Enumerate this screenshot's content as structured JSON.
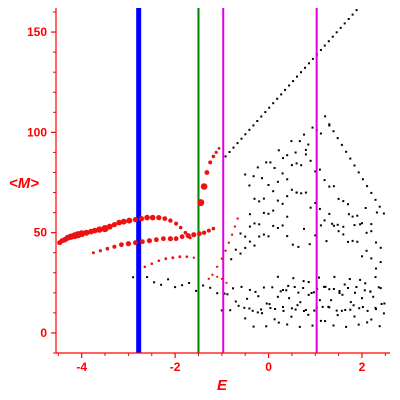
{
  "chart_data": {
    "type": "scatter",
    "xlabel": "E",
    "ylabel": "<M>",
    "xlim": [
      -4.55,
      2.6
    ],
    "ylim": [
      -10,
      162
    ],
    "x_ticks": [
      -4,
      -2,
      0,
      2
    ],
    "x_tick_labels": [
      "-4",
      "-2",
      "0",
      "2"
    ],
    "y_ticks": [
      0,
      50,
      100,
      150
    ],
    "y_tick_labels": [
      "0",
      "50",
      "100",
      "150"
    ],
    "colors": {
      "axes": "#ff0000",
      "red_points": "#ee1111",
      "black_points": "#000000",
      "vline_blue": "#0000ff",
      "vline_green": "#008000",
      "vline_magenta": "#e000e0"
    },
    "vlines": [
      {
        "x": -2.78,
        "color": "#0000ff",
        "width": 5
      },
      {
        "x": -1.5,
        "color": "#008000",
        "width": 2
      },
      {
        "x": -0.97,
        "color": "#e000e0",
        "width": 2
      },
      {
        "x": 1.03,
        "color": "#e000e0",
        "width": 2
      }
    ],
    "red_points": [
      [
        -4.47,
        45,
        2.5
      ],
      [
        -4.42,
        46,
        2.6
      ],
      [
        -4.36,
        46.5,
        2.8
      ],
      [
        -4.3,
        47.5,
        3
      ],
      [
        -4.23,
        48,
        3.2
      ],
      [
        -4.15,
        48.5,
        3.5
      ],
      [
        -4.08,
        49,
        3.6
      ],
      [
        -4.0,
        49.5,
        3.4
      ],
      [
        -3.9,
        50,
        3
      ],
      [
        -3.8,
        50.5,
        2.8
      ],
      [
        -3.72,
        51,
        2.8
      ],
      [
        -3.62,
        51.5,
        3.2
      ],
      [
        -3.5,
        52,
        3.6
      ],
      [
        -3.4,
        53,
        3
      ],
      [
        -3.3,
        54,
        2.6
      ],
      [
        -3.2,
        55,
        2.8
      ],
      [
        -3.1,
        55.5,
        3
      ],
      [
        -2.98,
        56,
        3
      ],
      [
        -2.85,
        56.5,
        2.6
      ],
      [
        -2.72,
        57,
        2.6
      ],
      [
        -2.6,
        57.5,
        2.8
      ],
      [
        -2.48,
        57.5,
        2.8
      ],
      [
        -2.35,
        57.5,
        2.6
      ],
      [
        -2.22,
        57,
        2.4
      ],
      [
        -2.1,
        56,
        2.2
      ],
      [
        -1.98,
        54.5,
        2
      ],
      [
        -1.88,
        52.5,
        1.8
      ],
      [
        -1.78,
        50,
        1.8
      ],
      [
        -1.68,
        47.5,
        1.6
      ],
      [
        -3.75,
        40,
        1.5
      ],
      [
        -3.6,
        41,
        1.6
      ],
      [
        -3.45,
        42,
        1.8
      ],
      [
        -3.3,
        43,
        2
      ],
      [
        -3.15,
        44,
        2.4
      ],
      [
        -3.0,
        44.5,
        2.6
      ],
      [
        -2.85,
        45,
        2.4
      ],
      [
        -2.7,
        45.5,
        2.4
      ],
      [
        -2.55,
        46,
        2.6
      ],
      [
        -2.4,
        46.5,
        2.4
      ],
      [
        -2.25,
        47,
        2.4
      ],
      [
        -2.1,
        47,
        2.6
      ],
      [
        -1.98,
        47,
        2.4
      ],
      [
        -1.85,
        48,
        2.4
      ],
      [
        -1.72,
        48.5,
        2.6
      ],
      [
        -1.6,
        49,
        2.6
      ],
      [
        -1.48,
        49.5,
        2.4
      ],
      [
        -1.38,
        50,
        2.2
      ],
      [
        -1.28,
        51,
        2
      ],
      [
        -1.18,
        52,
        1.8
      ],
      [
        -2.65,
        33,
        1.3
      ],
      [
        -2.5,
        34.5,
        1.3
      ],
      [
        -2.35,
        36,
        1.3
      ],
      [
        -2.2,
        37,
        1.4
      ],
      [
        -2.05,
        37.5,
        1.4
      ],
      [
        -1.9,
        38,
        1.4
      ],
      [
        -1.75,
        38,
        1.3
      ],
      [
        -1.6,
        37.5,
        1.2
      ],
      [
        -1.45,
        65,
        3.5
      ],
      [
        -1.38,
        73,
        3.3
      ],
      [
        -1.32,
        80,
        2.4
      ],
      [
        -1.25,
        85,
        2
      ],
      [
        -1.18,
        88,
        1.8
      ],
      [
        -1.12,
        90,
        1.6
      ],
      [
        -1.06,
        92,
        1.4
      ],
      [
        -1.28,
        27,
        1.2
      ],
      [
        -1.2,
        29,
        1.2
      ],
      [
        -1.1,
        33,
        1.2
      ],
      [
        -1.0,
        37,
        1.2
      ],
      [
        -0.92,
        41,
        1.2
      ],
      [
        -0.85,
        45,
        1.2
      ],
      [
        -0.78,
        49,
        1.2
      ],
      [
        -0.72,
        53,
        1.2
      ],
      [
        -0.66,
        57,
        1.2
      ],
      [
        -1.1,
        28,
        1.1
      ],
      [
        -1.0,
        27,
        1.1
      ],
      [
        -0.9,
        25,
        1.1
      ]
    ],
    "black_series": [
      {
        "x_start": -0.92,
        "x_end": 2.5,
        "y0": 88,
        "slope": 26,
        "step": 0.085,
        "wave": 0
      },
      {
        "x_start": -0.5,
        "x_end": 1.3,
        "y0": 75,
        "slope": 17,
        "step": 0.09,
        "wave": 4
      },
      {
        "x_start": 1.3,
        "x_end": 2.5,
        "y0": 104,
        "slope": -38,
        "step": 0.09,
        "wave": 0
      },
      {
        "x_start": -0.4,
        "x_end": 0.8,
        "y0": 62,
        "slope": 22,
        "step": 0.1,
        "wave": 3
      },
      {
        "x_start": 0.8,
        "x_end": 2.4,
        "y0": 88,
        "slope": -28,
        "step": 0.1,
        "wave": 2
      },
      {
        "x_start": -0.6,
        "x_end": 0.6,
        "y0": 48,
        "slope": 20,
        "step": 0.1,
        "wave": 2
      },
      {
        "x_start": 0.6,
        "x_end": 2.4,
        "y0": 72,
        "slope": -22,
        "step": 0.1,
        "wave": 3
      },
      {
        "x_start": -0.8,
        "x_end": 0.4,
        "y0": 38,
        "slope": 15,
        "step": 0.1,
        "wave": 2
      },
      {
        "x_start": 0.4,
        "x_end": 2.4,
        "y0": 44,
        "slope": 8,
        "step": 0.12,
        "wave": 5
      },
      {
        "x_start": -2.9,
        "x_end": -1.0,
        "y0": 27,
        "slope": -3,
        "step": 0.15,
        "wave": 2
      },
      {
        "x_start": -1.0,
        "x_end": 2.5,
        "y0": 17,
        "slope": 0,
        "step": 0.06,
        "wave": 6
      },
      {
        "x_start": -0.5,
        "x_end": 2.5,
        "y0": 8,
        "slope": 0,
        "step": 0.09,
        "wave": 5
      },
      {
        "x_start": 0.2,
        "x_end": 2.5,
        "y0": 24,
        "slope": 0,
        "step": 0.11,
        "wave": 4
      }
    ]
  }
}
